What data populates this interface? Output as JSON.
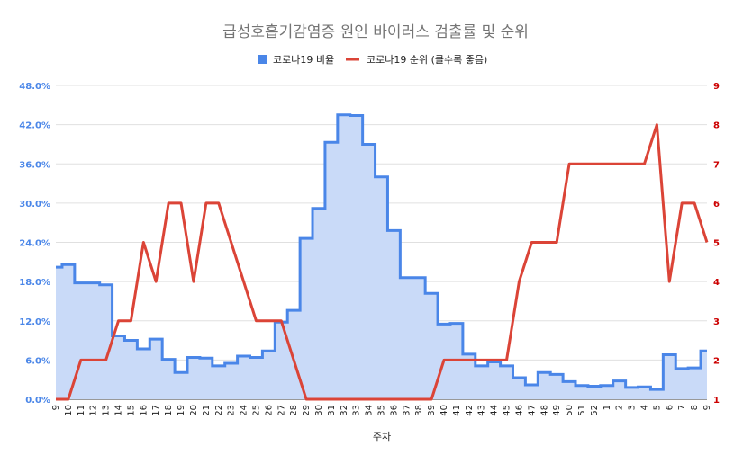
{
  "chart_data": {
    "type": "line",
    "title": "급성호흡기감염증 원인 바이러스 검출률 및 순위",
    "xlabel": "주차",
    "x": [
      "9",
      "10",
      "11",
      "12",
      "13",
      "14",
      "15",
      "16",
      "17",
      "18",
      "19",
      "20",
      "21",
      "22",
      "23",
      "24",
      "25",
      "26",
      "27",
      "28",
      "29",
      "30",
      "31",
      "32",
      "33",
      "34",
      "35",
      "36",
      "37",
      "38",
      "39",
      "40",
      "41",
      "42",
      "43",
      "44",
      "45",
      "46",
      "47",
      "48",
      "49",
      "50",
      "51",
      "52",
      "1",
      "2",
      "3",
      "4",
      "5",
      "6",
      "7",
      "8",
      "9"
    ],
    "y_left": {
      "ylim": [
        0,
        48
      ],
      "ticks": [
        "0.0%",
        "6.0%",
        "12.0%",
        "18.0%",
        "24.0%",
        "30.0%",
        "36.0%",
        "42.0%",
        "48.0%"
      ],
      "tick_values": [
        0,
        6,
        12,
        18,
        24,
        30,
        36,
        42,
        48
      ]
    },
    "y_right": {
      "ylim": [
        1,
        9
      ],
      "ticks": [
        "1",
        "2",
        "3",
        "4",
        "5",
        "6",
        "7",
        "8",
        "9"
      ]
    },
    "grid": true,
    "legend_position": "top",
    "series": [
      {
        "name": "코로나19 비율",
        "kind": "stepped-area",
        "axis": "left",
        "color": "#4a86e8",
        "fill_color": "#c9daf8",
        "values": [
          20.2,
          20.6,
          17.8,
          17.8,
          17.5,
          9.7,
          9.0,
          7.7,
          9.2,
          6.1,
          4.1,
          6.4,
          6.3,
          5.1,
          5.5,
          6.6,
          6.4,
          7.4,
          11.8,
          13.6,
          24.6,
          29.2,
          39.3,
          43.5,
          43.4,
          39.0,
          34.0,
          25.8,
          18.6,
          18.6,
          16.2,
          11.5,
          11.6,
          6.9,
          5.1,
          5.7,
          5.1,
          3.3,
          2.2,
          4.1,
          3.8,
          2.7,
          2.1,
          2.0,
          2.1,
          2.8,
          1.8,
          1.9,
          1.5,
          6.8,
          4.7,
          4.8,
          7.4
        ]
      },
      {
        "name": "코로나19 순위 (클수록 좋음)",
        "kind": "line",
        "axis": "right",
        "color": "#db4437",
        "values": [
          1,
          1,
          2,
          2,
          2,
          3,
          3,
          5,
          4,
          6,
          6,
          4,
          6,
          6,
          5,
          4,
          3,
          3,
          3,
          2,
          1,
          1,
          1,
          1,
          1,
          1,
          1,
          1,
          1,
          1,
          1,
          2,
          2,
          2,
          2,
          2,
          2,
          4,
          5,
          5,
          5,
          7,
          7,
          7,
          7,
          7,
          7,
          7,
          8,
          4,
          6,
          6,
          5
        ]
      }
    ]
  }
}
